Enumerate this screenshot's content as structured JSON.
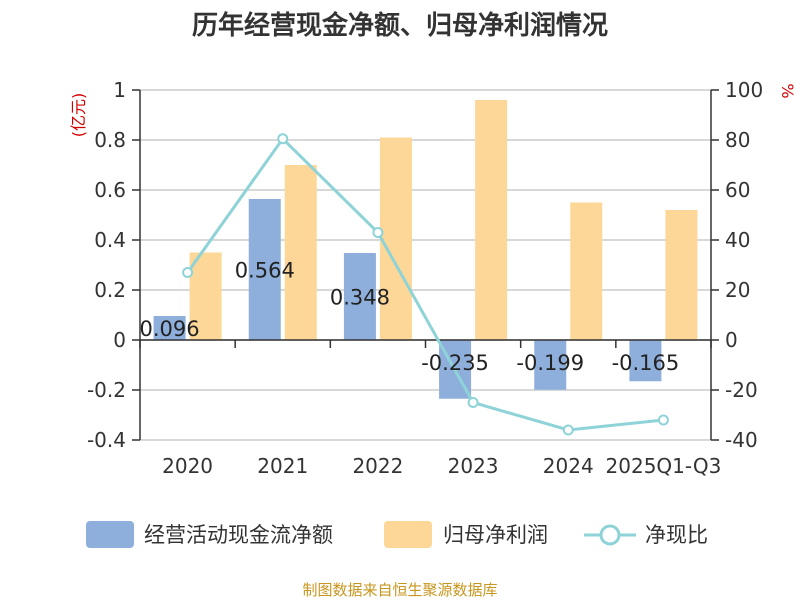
{
  "chart_data": {
    "type": "bar",
    "title": "历年经营现金净额、归母净利润情况",
    "categories": [
      "2020",
      "2021",
      "2022",
      "2023",
      "2024",
      "2025Q1-Q3"
    ],
    "left_axis": {
      "unit_label": "(亿元)",
      "ylim": [
        -0.4,
        1
      ],
      "ticks": [
        1,
        0.8,
        0.6,
        0.4,
        0.2,
        0,
        -0.2,
        -0.4
      ],
      "tick_labels": [
        "1",
        "0.8",
        "0.6",
        "0.4",
        "0.2",
        "0",
        "-0.2",
        "-0.4"
      ]
    },
    "right_axis": {
      "unit_label": "%",
      "ylim": [
        -40,
        100
      ],
      "ticks": [
        100,
        80,
        60,
        40,
        20,
        0,
        -20,
        -40
      ],
      "tick_labels": [
        "100",
        "80",
        "60",
        "40",
        "20",
        "0",
        "-20",
        "-40"
      ]
    },
    "grid": true,
    "series": [
      {
        "name": "经营活动现金流净额",
        "type": "bar",
        "axis": "left",
        "color": "#8eaedb",
        "values": [
          0.096,
          0.564,
          0.348,
          -0.235,
          -0.199,
          -0.165
        ],
        "labels": [
          "0.096",
          "0.564",
          "0.348",
          "-0.235",
          "-0.199",
          "-0.165"
        ]
      },
      {
        "name": "归母净利润",
        "type": "bar",
        "axis": "left",
        "color": "#fdd797",
        "values": [
          0.35,
          0.7,
          0.81,
          0.96,
          0.55,
          0.52
        ]
      },
      {
        "name": "净现比",
        "type": "line",
        "axis": "right",
        "color": "#8dd3d7",
        "values": [
          27,
          80.5,
          43,
          -25,
          -36,
          -32
        ]
      }
    ],
    "legend_position": "bottom",
    "source": "制图数据来自恒生聚源数据库"
  }
}
